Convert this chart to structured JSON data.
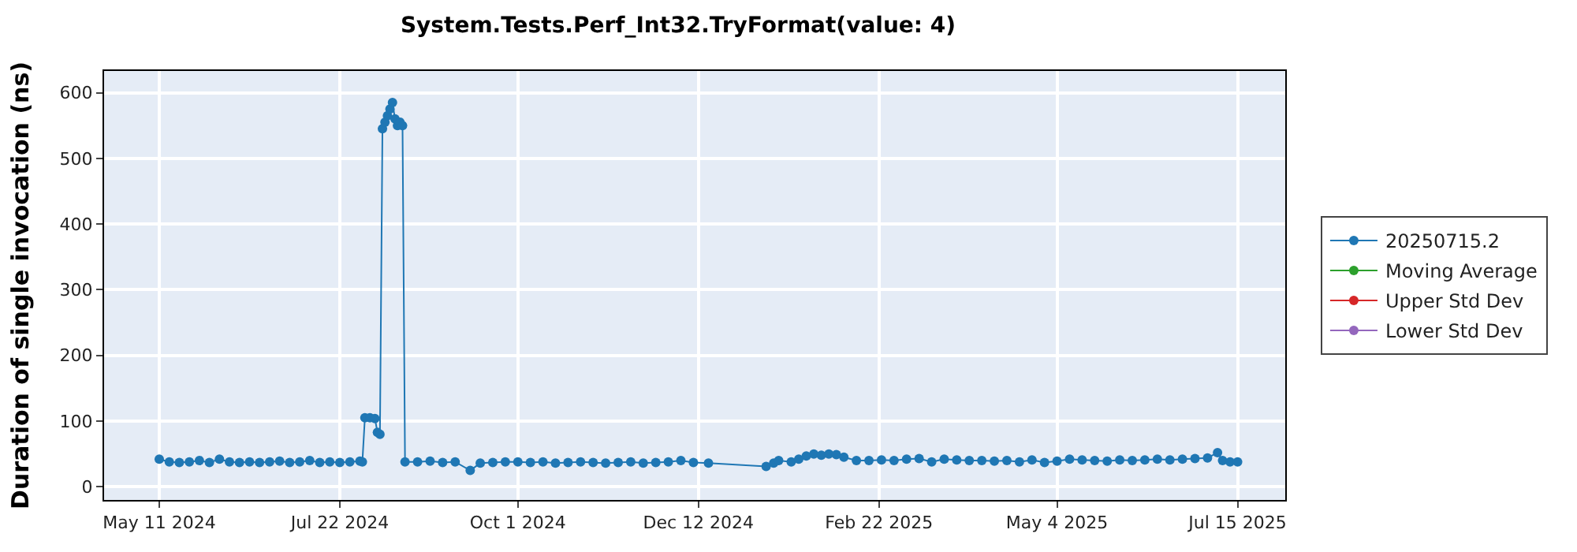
{
  "chart_data": {
    "type": "line",
    "title": "System.Tests.Perf_Int32.TryFormat(value: 4)",
    "ylabel": "Duration of single invocation (ns)",
    "xlim": [
      "2024-04-19",
      "2025-08-03"
    ],
    "ylim": [
      -20,
      633
    ],
    "xticks": [
      {
        "value": "2024-05-11",
        "label": "May 11 2024"
      },
      {
        "value": "2024-07-22",
        "label": "Jul 22 2024"
      },
      {
        "value": "2024-10-01",
        "label": "Oct 1 2024"
      },
      {
        "value": "2024-12-12",
        "label": "Dec 12 2024"
      },
      {
        "value": "2025-02-22",
        "label": "Feb 22 2025"
      },
      {
        "value": "2025-05-04",
        "label": "May 4 2025"
      },
      {
        "value": "2025-07-15",
        "label": "Jul 15 2025"
      }
    ],
    "yticks": [
      0,
      100,
      200,
      300,
      400,
      500,
      600
    ],
    "grid": true,
    "legend": "right",
    "marker": "circle",
    "line_style": "solid",
    "series": [
      {
        "name": "20250715.2",
        "color": "#1f77b4",
        "x": [
          "2024-05-11",
          "2024-05-15",
          "2024-05-19",
          "2024-05-23",
          "2024-05-27",
          "2024-05-31",
          "2024-06-04",
          "2024-06-08",
          "2024-06-12",
          "2024-06-16",
          "2024-06-20",
          "2024-06-24",
          "2024-06-28",
          "2024-07-02",
          "2024-07-06",
          "2024-07-10",
          "2024-07-14",
          "2024-07-18",
          "2024-07-22",
          "2024-07-26",
          "2024-07-30",
          "2024-07-31",
          "2024-08-01",
          "2024-08-03",
          "2024-08-05",
          "2024-08-06",
          "2024-08-07",
          "2024-08-08",
          "2024-08-09",
          "2024-08-10",
          "2024-08-11",
          "2024-08-12",
          "2024-08-13",
          "2024-08-14",
          "2024-08-15",
          "2024-08-16",
          "2024-08-17",
          "2024-08-22",
          "2024-08-27",
          "2024-09-01",
          "2024-09-06",
          "2024-09-12",
          "2024-09-16",
          "2024-09-21",
          "2024-09-26",
          "2024-10-01",
          "2024-10-06",
          "2024-10-11",
          "2024-10-16",
          "2024-10-21",
          "2024-10-26",
          "2024-10-31",
          "2024-11-05",
          "2024-11-10",
          "2024-11-15",
          "2024-11-20",
          "2024-11-25",
          "2024-11-30",
          "2024-12-05",
          "2024-12-10",
          "2024-12-16",
          "2025-01-08",
          "2025-01-11",
          "2025-01-13",
          "2025-01-18",
          "2025-01-21",
          "2025-01-24",
          "2025-01-27",
          "2025-01-30",
          "2025-02-02",
          "2025-02-05",
          "2025-02-08",
          "2025-02-13",
          "2025-02-18",
          "2025-02-23",
          "2025-02-28",
          "2025-03-05",
          "2025-03-10",
          "2025-03-15",
          "2025-03-20",
          "2025-03-25",
          "2025-03-30",
          "2025-04-04",
          "2025-04-09",
          "2025-04-14",
          "2025-04-19",
          "2025-04-24",
          "2025-04-29",
          "2025-05-04",
          "2025-05-09",
          "2025-05-14",
          "2025-05-19",
          "2025-05-24",
          "2025-05-29",
          "2025-06-03",
          "2025-06-08",
          "2025-06-13",
          "2025-06-18",
          "2025-06-23",
          "2025-06-28",
          "2025-07-03",
          "2025-07-07",
          "2025-07-09",
          "2025-07-12",
          "2025-07-15"
        ],
        "values": [
          42,
          38,
          37,
          38,
          40,
          37,
          42,
          38,
          37,
          38,
          37,
          38,
          39,
          37,
          38,
          40,
          37,
          38,
          37,
          38,
          39,
          38,
          105,
          105,
          104,
          83,
          80,
          545,
          555,
          565,
          575,
          585,
          560,
          550,
          555,
          550,
          38,
          38,
          39,
          37,
          38,
          25,
          36,
          37,
          38,
          38,
          37,
          38,
          36,
          37,
          38,
          37,
          36,
          37,
          38,
          36,
          37,
          38,
          40,
          37,
          36,
          31,
          36,
          40,
          38,
          42,
          47,
          50,
          48,
          50,
          49,
          45,
          40,
          40,
          41,
          40,
          42,
          43,
          38,
          42,
          41,
          40,
          40,
          39,
          40,
          38,
          41,
          37,
          39,
          42,
          41,
          40,
          39,
          41,
          40,
          41,
          42,
          41,
          42,
          43,
          44,
          52,
          40,
          38,
          38
        ]
      },
      {
        "name": "Moving Average",
        "color": "#2ca02c"
      },
      {
        "name": "Upper Std Dev",
        "color": "#d62728"
      },
      {
        "name": "Lower Std Dev",
        "color": "#9467bd"
      }
    ]
  }
}
